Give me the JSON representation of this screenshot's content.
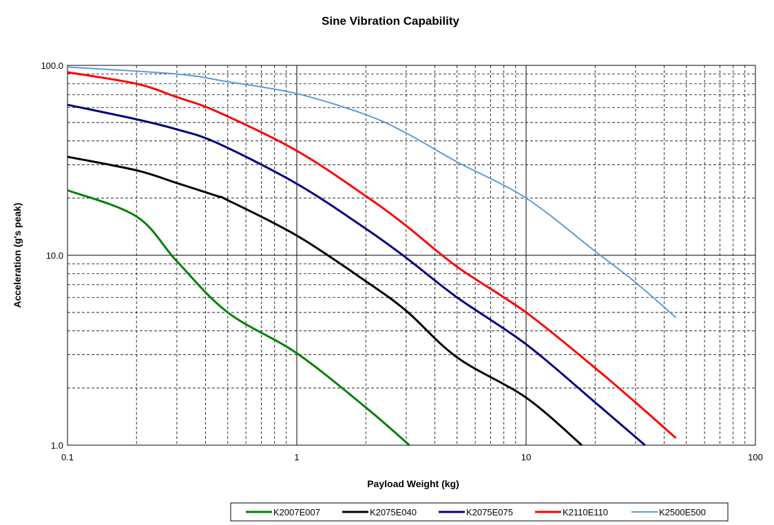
{
  "chart_data": {
    "type": "line",
    "title": "Sine Vibration Capability",
    "xlabel": "Payload Weight (kg)",
    "ylabel": "Acceleration (g's peak)",
    "xscale": "log",
    "yscale": "log",
    "xlim": [
      0.1,
      100
    ],
    "ylim": [
      1,
      100
    ],
    "xticks": [
      {
        "v": 0.1,
        "label": "0.1"
      },
      {
        "v": 1,
        "label": "1"
      },
      {
        "v": 10,
        "label": "10"
      },
      {
        "v": 100,
        "label": "100"
      }
    ],
    "yticks": [
      {
        "v": 1,
        "label": "1.0"
      },
      {
        "v": 10,
        "label": "10.0"
      },
      {
        "v": 100,
        "label": "100.0"
      }
    ],
    "grid": true,
    "legend_position": "bottom",
    "series": [
      {
        "name": "K2007E007",
        "color": "#008000",
        "width": 3,
        "x": [
          0.1,
          0.2,
          0.3,
          0.5,
          1,
          2,
          3.1
        ],
        "y": [
          22,
          16,
          9.3,
          5.0,
          3.05,
          1.58,
          1.0
        ]
      },
      {
        "name": "K2075E040",
        "color": "#000000",
        "width": 3,
        "x": [
          0.1,
          0.2,
          0.3,
          0.45,
          0.5,
          1,
          2,
          3,
          5,
          10,
          17.5
        ],
        "y": [
          33,
          28,
          24,
          20.5,
          19.5,
          12.7,
          7.3,
          5.1,
          2.9,
          1.78,
          1.0
        ]
      },
      {
        "name": "K2075E075",
        "color": "#000080",
        "width": 3,
        "x": [
          0.1,
          0.2,
          0.3,
          0.45,
          1,
          2,
          3,
          5,
          10,
          20,
          33
        ],
        "y": [
          62,
          52,
          46,
          39,
          23.8,
          13.8,
          9.7,
          6.0,
          3.4,
          1.68,
          1.0
        ]
      },
      {
        "name": "K2110E110",
        "color": "#ff0000",
        "width": 3,
        "x": [
          0.1,
          0.2,
          0.3,
          0.45,
          1,
          2,
          3,
          5,
          10,
          20,
          30,
          45
        ],
        "y": [
          92,
          80,
          68,
          57,
          35.5,
          20.5,
          14.3,
          8.7,
          5.0,
          2.55,
          1.68,
          1.09
        ]
      },
      {
        "name": "K2500E500",
        "color": "#5b9bd5",
        "width": 2,
        "x": [
          0.1,
          0.3,
          0.5,
          1,
          2,
          3,
          5,
          10,
          20,
          30,
          45
        ],
        "y": [
          98,
          90,
          82,
          71,
          55,
          44,
          31,
          20,
          10.5,
          7.2,
          4.7
        ]
      }
    ]
  }
}
